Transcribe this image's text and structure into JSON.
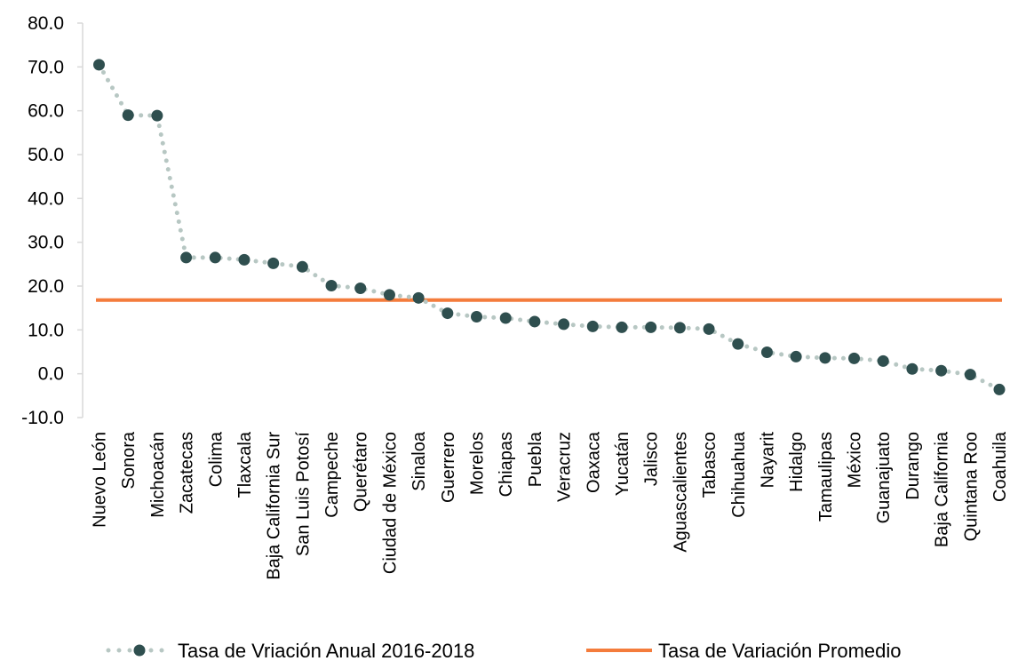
{
  "chart_data": {
    "type": "line",
    "categories": [
      "Nuevo León",
      "Sonora",
      "Michoacán",
      "Zacatecas",
      "Colima",
      "Tlaxcala",
      "Baja California Sur",
      "San Luis Potosí",
      "Campeche",
      "Querétaro",
      "Ciudad de México",
      "Sinaloa",
      "Guerrero",
      "Morelos",
      "Chiapas",
      "Puebla",
      "Veracruz",
      "Oaxaca",
      "Yucatán",
      "Jalisco",
      "Aguascalientes",
      "Tabasco",
      "Chihuahua",
      "Nayarit",
      "Hidalgo",
      "Tamaulipas",
      "México",
      "Guanajuato",
      "Durango",
      "Baja California",
      "Quintana Roo",
      "Coahuila"
    ],
    "series": [
      {
        "name": "Tasa de Vriación Anual 2016-2018",
        "values": [
          70.5,
          59.0,
          58.9,
          26.5,
          26.5,
          26.0,
          25.2,
          24.4,
          20.1,
          19.5,
          18.0,
          17.3,
          13.8,
          13.0,
          12.7,
          11.9,
          11.3,
          10.8,
          10.6,
          10.6,
          10.5,
          10.2,
          6.8,
          4.9,
          3.9,
          3.6,
          3.5,
          2.9,
          1.1,
          0.7,
          -0.2,
          -3.6
        ],
        "color": "#2f4f4f",
        "line_color": "#b7c7c3",
        "style": "dotted-with-markers"
      },
      {
        "name": "Tasa de Variación Promedio",
        "value": 16.8,
        "color": "#f47c3c",
        "style": "solid-horizontal"
      }
    ],
    "ylim": [
      -10,
      80
    ],
    "yticks": [
      "-10.0",
      "0.0",
      "10.0",
      "20.0",
      "30.0",
      "40.0",
      "50.0",
      "60.0",
      "70.0",
      "80.0"
    ],
    "legend_position": "bottom",
    "grid": false
  }
}
